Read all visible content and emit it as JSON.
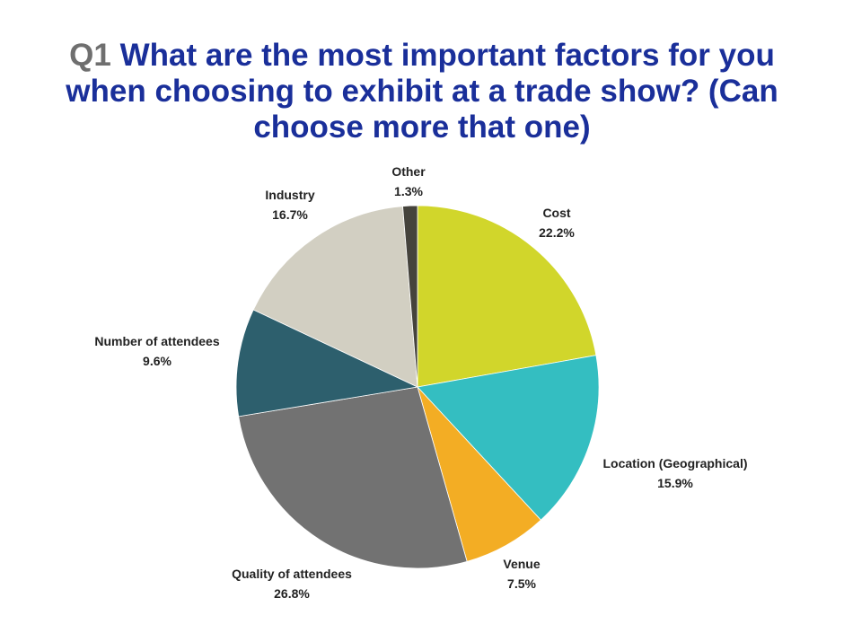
{
  "chart_data": {
    "type": "pie",
    "title_prefix": "Q1",
    "title": "What are the most important factors for you when choosing to exhibit at a trade show? (Can choose more that one)",
    "slices": [
      {
        "label": "Cost",
        "value": 22.2,
        "value_label": "22.2%",
        "color": "#d1d62b"
      },
      {
        "label": "Location (Geographical)",
        "value": 15.9,
        "value_label": "15.9%",
        "color": "#34bec1"
      },
      {
        "label": "Venue",
        "value": 7.5,
        "value_label": "7.5%",
        "color": "#f3ad24"
      },
      {
        "label": "Quality of attendees",
        "value": 26.8,
        "value_label": "26.8%",
        "color": "#727272"
      },
      {
        "label": "Number of attendees",
        "value": 9.6,
        "value_label": "9.6%",
        "color": "#2d5f6d"
      },
      {
        "label": "Industry",
        "value": 16.7,
        "value_label": "16.7%",
        "color": "#d2cfc2"
      },
      {
        "label": "Other",
        "value": 1.3,
        "value_label": "1.3%",
        "color": "#45433c"
      }
    ]
  }
}
